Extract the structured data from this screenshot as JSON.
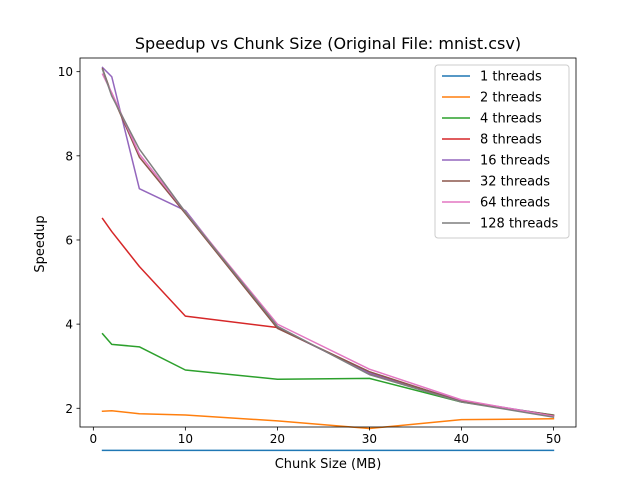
{
  "chart_data": {
    "type": "line",
    "title": "Speedup vs Chunk Size (Original File: mnist.csv)",
    "xlabel": "Chunk Size (MB)",
    "ylabel": "Speedup",
    "xlim": [
      -1.45,
      52.45
    ],
    "ylim": [
      1.555,
      10.325
    ],
    "x_ticks": [
      0,
      10,
      20,
      30,
      40,
      50
    ],
    "y_ticks": [
      2,
      4,
      6,
      8,
      10
    ],
    "grid": false,
    "legend_position": "top-right",
    "x": [
      1,
      2,
      5,
      10,
      20,
      30,
      40,
      50
    ],
    "series": [
      {
        "name": "1 threads",
        "color": "#1f77b4",
        "values": [
          1.0,
          1.0,
          1.0,
          1.0,
          1.0,
          1.0,
          1.0,
          1.0
        ]
      },
      {
        "name": "2 threads",
        "color": "#ff7f0e",
        "values": [
          1.93,
          1.94,
          1.87,
          1.84,
          1.7,
          1.52,
          1.73,
          1.75
        ]
      },
      {
        "name": "4 threads",
        "color": "#2ca02c",
        "values": [
          3.77,
          3.52,
          3.46,
          2.91,
          2.69,
          2.71,
          2.15,
          1.84
        ]
      },
      {
        "name": "8 threads",
        "color": "#d62728",
        "values": [
          6.51,
          6.2,
          5.37,
          4.19,
          3.92,
          2.83,
          2.16,
          1.83
        ]
      },
      {
        "name": "16 threads",
        "color": "#9467bd",
        "values": [
          10.1,
          9.88,
          7.22,
          6.7,
          3.91,
          2.84,
          2.18,
          1.83
        ]
      },
      {
        "name": "32 threads",
        "color": "#8c564b",
        "values": [
          10.07,
          9.46,
          7.97,
          6.63,
          3.9,
          2.87,
          2.16,
          1.83
        ]
      },
      {
        "name": "64 threads",
        "color": "#e377c2",
        "values": [
          9.94,
          9.5,
          8.04,
          6.67,
          4.0,
          2.93,
          2.2,
          1.81
        ]
      },
      {
        "name": "128 threads",
        "color": "#7f7f7f",
        "values": [
          10.05,
          9.42,
          8.16,
          6.66,
          3.95,
          2.8,
          2.15,
          1.79
        ]
      }
    ]
  }
}
